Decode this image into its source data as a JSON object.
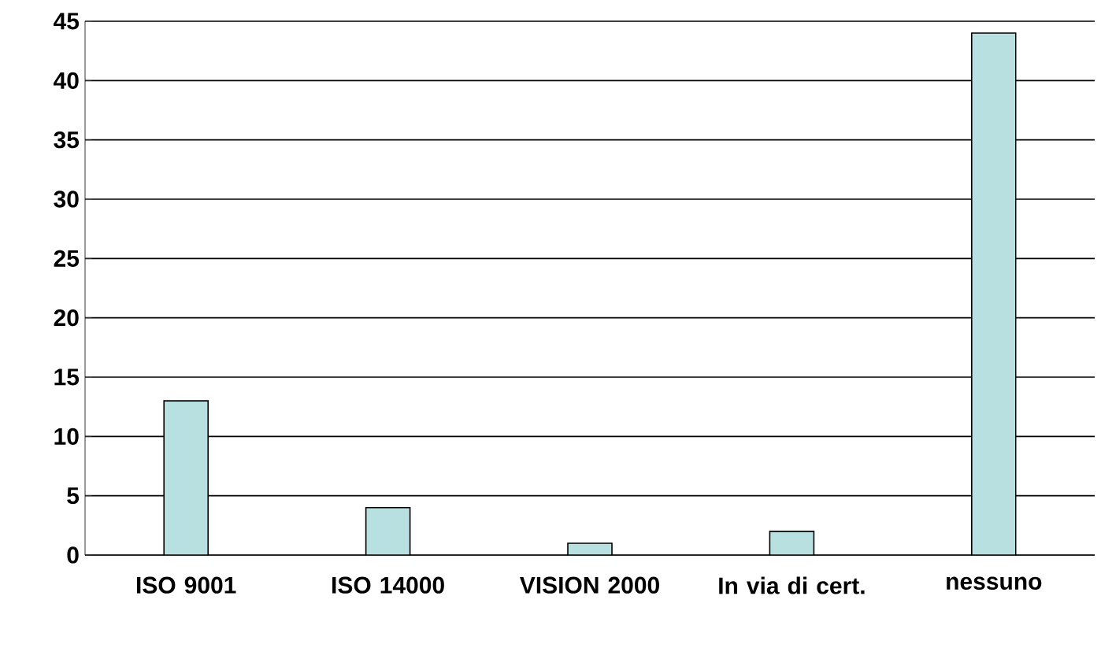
{
  "chart_data": {
    "type": "bar",
    "categories": [
      "ISO 9001",
      "ISO 14000",
      "VISION 2000",
      "In via di cert.",
      "nessuno"
    ],
    "values": [
      13,
      4,
      1,
      2,
      44
    ],
    "color": "#b8e0e0",
    "ylim": [
      0,
      45
    ],
    "yticks": [
      0,
      5,
      10,
      15,
      20,
      25,
      30,
      35,
      40,
      45
    ],
    "grid": "y"
  }
}
